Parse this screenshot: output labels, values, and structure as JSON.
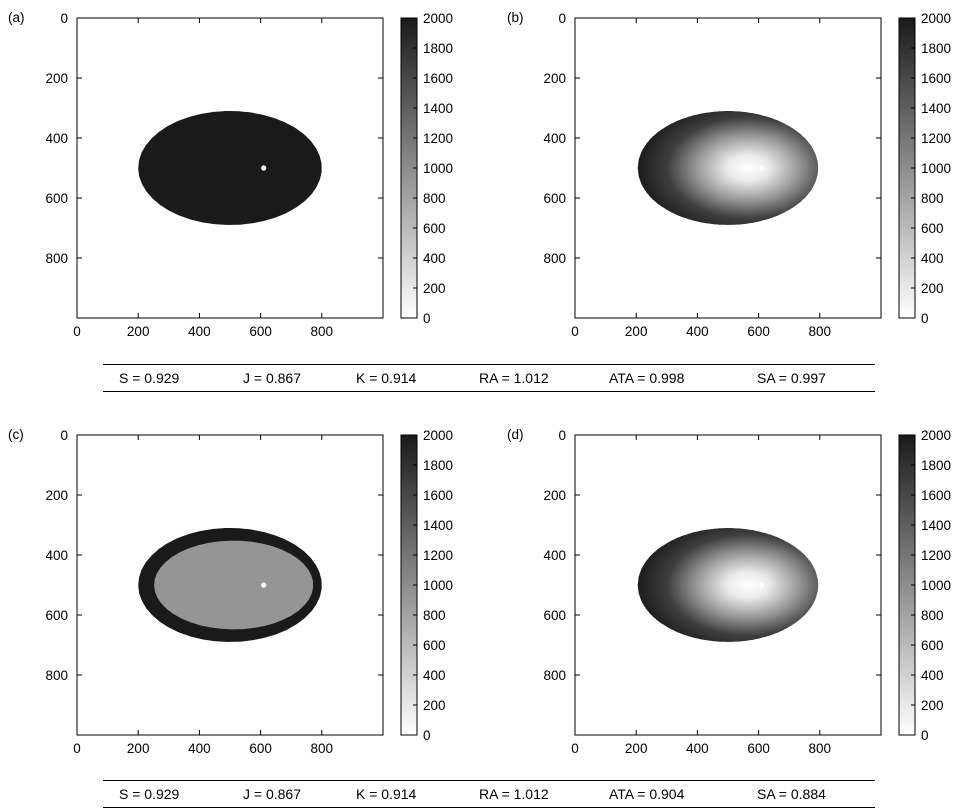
{
  "chart_data": [
    {
      "type": "heatmap",
      "panel_label": "(a)",
      "field": "uniform",
      "xlim": [
        0,
        1000
      ],
      "ylim": [
        1000,
        0
      ],
      "xticks": [
        0,
        200,
        400,
        600,
        800
      ],
      "yticks": [
        0,
        200,
        400,
        600,
        800
      ],
      "colorbar": {
        "min": 0,
        "max": 2000,
        "ticks": [
          0,
          200,
          400,
          600,
          800,
          1000,
          1200,
          1400,
          1600,
          1800,
          2000
        ],
        "colormap": "gray_reversed"
      },
      "shape": {
        "center": [
          500,
          500
        ],
        "rx": 300,
        "ry": 190,
        "notch_tips": [
          [
            268,
            385
          ],
          [
            268,
            620
          ]
        ],
        "notch_depth_x": 360
      },
      "source_point": [
        610,
        500
      ],
      "fill_value": 2000
    },
    {
      "type": "heatmap",
      "panel_label": "(b)",
      "field": "graded",
      "xlim": [
        0,
        1000
      ],
      "ylim": [
        1000,
        0
      ],
      "xticks": [
        0,
        200,
        400,
        600,
        800
      ],
      "yticks": [
        0,
        200,
        400,
        600,
        800
      ],
      "colorbar": {
        "min": 0,
        "max": 2000,
        "ticks": [
          0,
          200,
          400,
          600,
          800,
          1000,
          1200,
          1400,
          1600,
          1800,
          2000
        ],
        "colormap": "gray_reversed"
      },
      "shape": {
        "center": [
          500,
          500
        ],
        "rx": 295,
        "ry": 190,
        "notch_tips": [
          [
            248,
            435
          ],
          [
            248,
            565
          ]
        ],
        "notch_depth_x": 275
      },
      "source_point": [
        610,
        500
      ],
      "center_value": 0,
      "edge_value": 2000
    },
    {
      "type": "heatmap",
      "panel_label": "(c)",
      "field": "rim",
      "xlim": [
        0,
        1000
      ],
      "ylim": [
        1000,
        0
      ],
      "xticks": [
        0,
        200,
        400,
        600,
        800
      ],
      "yticks": [
        0,
        200,
        400,
        600,
        800
      ],
      "colorbar": {
        "min": 0,
        "max": 2000,
        "ticks": [
          0,
          200,
          400,
          600,
          800,
          1000,
          1200,
          1400,
          1600,
          1800,
          2000
        ],
        "colormap": "gray_reversed"
      },
      "shape": {
        "center": [
          500,
          500
        ],
        "rx": 300,
        "ry": 190,
        "notch_tips": [
          [
            268,
            385
          ],
          [
            268,
            620
          ]
        ],
        "notch_depth_x": 360
      },
      "source_point": [
        610,
        500
      ],
      "rim_value": 2000,
      "interior_value": 900
    },
    {
      "type": "heatmap",
      "panel_label": "(d)",
      "field": "graded",
      "xlim": [
        0,
        1000
      ],
      "ylim": [
        1000,
        0
      ],
      "xticks": [
        0,
        200,
        400,
        600,
        800
      ],
      "yticks": [
        0,
        200,
        400,
        600,
        800
      ],
      "colorbar": {
        "min": 0,
        "max": 2000,
        "ticks": [
          0,
          200,
          400,
          600,
          800,
          1000,
          1200,
          1400,
          1600,
          1800,
          2000
        ],
        "colormap": "gray_reversed"
      },
      "shape": {
        "center": [
          500,
          500
        ],
        "rx": 295,
        "ry": 190,
        "notch_tips": [
          [
            248,
            435
          ],
          [
            248,
            565
          ]
        ],
        "notch_depth_x": 275
      },
      "source_point": [
        610,
        500
      ],
      "center_value": 0,
      "edge_value": 2000
    }
  ],
  "metrics": [
    {
      "s": "S = 0.929",
      "j": "J = 0.867",
      "k": "K = 0.914",
      "ra": "RA = 1.012",
      "ata": "ATA = 0.998",
      "sa": "SA = 0.997"
    },
    {
      "s": "S = 0.929",
      "j": "J = 0.867",
      "k": "K = 0.914",
      "ra": "RA = 1.012",
      "ata": "ATA = 0.904",
      "sa": "SA = 0.884"
    }
  ]
}
